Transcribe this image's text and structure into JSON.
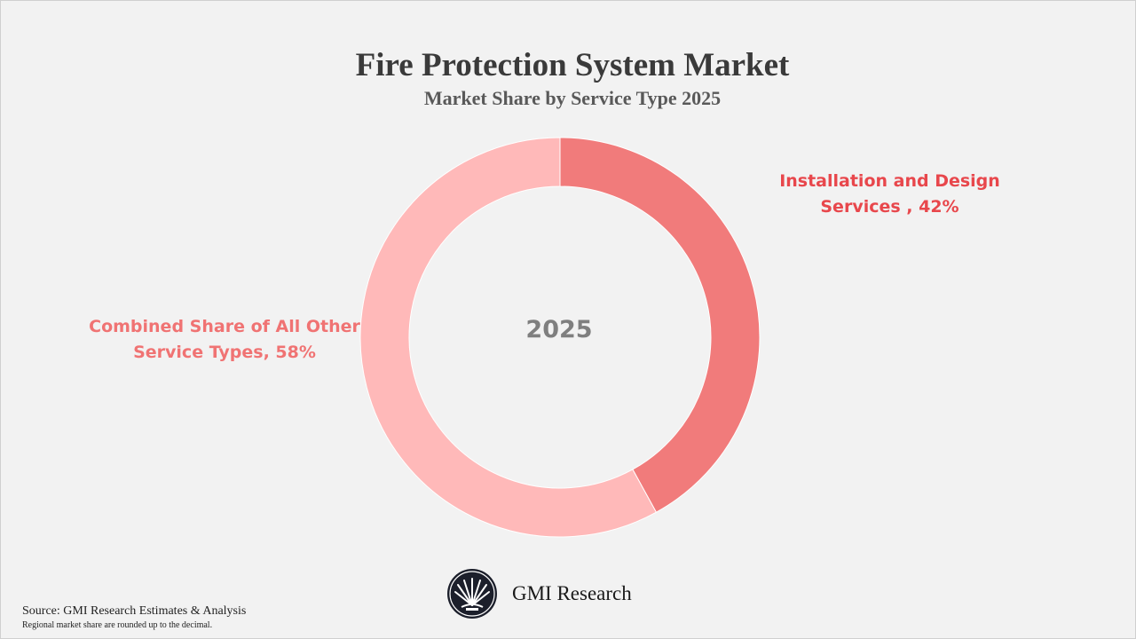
{
  "chart_data": {
    "type": "pie",
    "title": "Fire Protection System Market",
    "subtitle": "Market Share by Service Type 2025",
    "center_label": "2025",
    "slices": [
      {
        "name": "Installation and Design Services",
        "label_line1": "Installation and Design",
        "label_line2": "Services , 42%",
        "value": 42,
        "color": "#f17b7b"
      },
      {
        "name": "Combined Share of All Other Service Types",
        "label_line1": "Combined Share of All Other",
        "label_line2": "Service Types, 58%",
        "value": 58,
        "color": "#ffb9b9"
      }
    ]
  },
  "footer": {
    "brand": "GMI Research",
    "source": "Source: GMI Research Estimates & Analysis",
    "note": "Regional market share are rounded up to the decimal.",
    "logo_icon": "gmi-fan-logo-icon"
  }
}
